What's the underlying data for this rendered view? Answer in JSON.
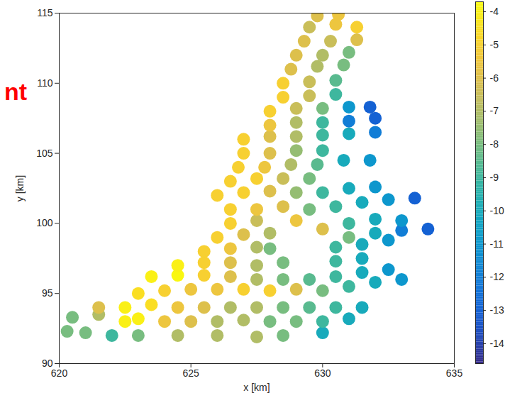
{
  "chart_data": {
    "type": "scatter",
    "x_label": "x [km]",
    "y_label": "y [km]",
    "xlim": [
      620,
      635
    ],
    "ylim": [
      90,
      115
    ],
    "xticks": [
      620,
      625,
      630,
      635
    ],
    "yticks": [
      90,
      95,
      100,
      105,
      110,
      115
    ],
    "colorbar": {
      "range": [
        -14.6,
        -3.7
      ],
      "ticks": [
        -14,
        -13,
        -12,
        -11,
        -10,
        -9,
        -8,
        -7,
        -6,
        -5,
        -4
      ]
    },
    "annotations": [
      {
        "text": "nt",
        "color": "#ff0000"
      }
    ],
    "points": [
      [
        620.3,
        92.3,
        -8
      ],
      [
        621,
        92.2,
        -8
      ],
      [
        622,
        92,
        -9
      ],
      [
        623,
        92,
        -8
      ],
      [
        624.5,
        92,
        -7
      ],
      [
        626,
        92,
        -7
      ],
      [
        627.5,
        91.9,
        -7
      ],
      [
        628.5,
        92,
        -8
      ],
      [
        630,
        92.2,
        -10
      ],
      [
        620.5,
        93.3,
        -8
      ],
      [
        621.5,
        93.5,
        -7
      ],
      [
        622.5,
        93,
        -4
      ],
      [
        623,
        93.2,
        -4
      ],
      [
        624,
        93,
        -5.5
      ],
      [
        625,
        93,
        -6
      ],
      [
        626,
        93,
        -7
      ],
      [
        627,
        93.1,
        -7
      ],
      [
        628,
        93,
        -8
      ],
      [
        629,
        93,
        -8
      ],
      [
        630,
        93,
        -9
      ],
      [
        631,
        93.2,
        -10
      ],
      [
        621.5,
        94,
        -6
      ],
      [
        622.5,
        94,
        -4
      ],
      [
        623.5,
        94.2,
        -4.5
      ],
      [
        624.5,
        94,
        -5.5
      ],
      [
        625.5,
        94,
        -6
      ],
      [
        626.5,
        94,
        -7
      ],
      [
        627.5,
        94,
        -7
      ],
      [
        628.5,
        94,
        -8
      ],
      [
        629.5,
        94,
        -8.5
      ],
      [
        630.5,
        94,
        -9
      ],
      [
        631.5,
        94,
        -10
      ],
      [
        623,
        95,
        -4.5
      ],
      [
        624,
        95.2,
        -5
      ],
      [
        625,
        95.3,
        -5.5
      ],
      [
        626,
        95.3,
        -5.5
      ],
      [
        627,
        95.3,
        -5
      ],
      [
        628,
        95.2,
        -5
      ],
      [
        629,
        95.3,
        -6
      ],
      [
        630,
        95.2,
        -8
      ],
      [
        631,
        95.5,
        -9
      ],
      [
        632,
        95.8,
        -10
      ],
      [
        633,
        96,
        -11
      ],
      [
        623.5,
        96.2,
        -4
      ],
      [
        624.5,
        96.3,
        -3.8
      ],
      [
        625.5,
        96.3,
        -5
      ],
      [
        626.5,
        96.2,
        -6
      ],
      [
        627.5,
        96,
        -7
      ],
      [
        628.5,
        96,
        -8
      ],
      [
        629.5,
        96,
        -8.5
      ],
      [
        630.5,
        96.2,
        -9
      ],
      [
        631.5,
        96.5,
        -10
      ],
      [
        632.5,
        96.7,
        -11
      ],
      [
        624.5,
        97,
        -4
      ],
      [
        625.5,
        97.2,
        -5
      ],
      [
        626.5,
        97.2,
        -6
      ],
      [
        627.5,
        97,
        -7
      ],
      [
        628.5,
        97.2,
        -8
      ],
      [
        630.5,
        97.3,
        -9
      ],
      [
        631.5,
        97.5,
        -10
      ],
      [
        625.5,
        98,
        -5
      ],
      [
        626.5,
        98.2,
        -5.5
      ],
      [
        627.5,
        98.3,
        -7
      ],
      [
        628,
        98.2,
        -8
      ],
      [
        630.5,
        98.3,
        -9
      ],
      [
        631.5,
        98.5,
        -10
      ],
      [
        632.5,
        98.8,
        -11
      ],
      [
        626,
        99,
        -5
      ],
      [
        627,
        99.2,
        -6
      ],
      [
        628,
        99.3,
        -7
      ],
      [
        631,
        99,
        -8
      ],
      [
        632,
        99.3,
        -10
      ],
      [
        633,
        99.5,
        -12
      ],
      [
        634,
        99.6,
        -13
      ],
      [
        626.5,
        100,
        -5
      ],
      [
        627.5,
        100.2,
        -6.5
      ],
      [
        629,
        100.2,
        -5.5
      ],
      [
        630,
        99.6,
        -6
      ],
      [
        631,
        100,
        -9
      ],
      [
        632,
        100.3,
        -10
      ],
      [
        633,
        100.2,
        -11
      ],
      [
        626.5,
        101,
        -5
      ],
      [
        627.5,
        101,
        -5.5
      ],
      [
        628.5,
        101.2,
        -6
      ],
      [
        629.5,
        101,
        -8
      ],
      [
        630.5,
        101.2,
        -9
      ],
      [
        631.5,
        101.5,
        -10
      ],
      [
        632.5,
        101.7,
        -11
      ],
      [
        633.5,
        101.8,
        -13
      ],
      [
        626,
        102,
        -5
      ],
      [
        627,
        102.2,
        -5
      ],
      [
        628,
        102.3,
        -6
      ],
      [
        629,
        102.2,
        -7.5
      ],
      [
        630,
        102.2,
        -9
      ],
      [
        631,
        102.5,
        -10
      ],
      [
        632,
        102.6,
        -11
      ],
      [
        626.5,
        103,
        -5
      ],
      [
        627.5,
        103.2,
        -5
      ],
      [
        628.5,
        103.2,
        -6.5
      ],
      [
        629.5,
        103.2,
        -8
      ],
      [
        626.8,
        104,
        -5
      ],
      [
        627.8,
        104,
        -5.5
      ],
      [
        628.8,
        104.2,
        -7
      ],
      [
        629.8,
        104.2,
        -8.5
      ],
      [
        630.8,
        104.5,
        -10
      ],
      [
        631.8,
        104.5,
        -11
      ],
      [
        627,
        105,
        -5
      ],
      [
        628,
        105,
        -6
      ],
      [
        629,
        105.2,
        -7.5
      ],
      [
        630,
        105.2,
        -9
      ],
      [
        627,
        106,
        -5
      ],
      [
        628,
        106.2,
        -6
      ],
      [
        629,
        106.2,
        -7
      ],
      [
        630,
        106.3,
        -9
      ],
      [
        631,
        106.4,
        -10
      ],
      [
        632,
        106.5,
        -12
      ],
      [
        628,
        107,
        -5.5
      ],
      [
        629,
        107.2,
        -7
      ],
      [
        630,
        107.2,
        -9
      ],
      [
        631,
        107.3,
        -12
      ],
      [
        632,
        107.5,
        -13
      ],
      [
        628,
        108,
        -5
      ],
      [
        629,
        108.2,
        -6.5
      ],
      [
        630,
        108.2,
        -8
      ],
      [
        631,
        108.3,
        -11
      ],
      [
        631.8,
        108.3,
        -13
      ],
      [
        628.5,
        109,
        -5
      ],
      [
        629.5,
        109.1,
        -6.5
      ],
      [
        630.5,
        109.2,
        -9
      ],
      [
        628.5,
        110,
        -5
      ],
      [
        629.5,
        110.1,
        -6.5
      ],
      [
        630.5,
        110.2,
        -8.5
      ],
      [
        628.8,
        111,
        -6
      ],
      [
        629.8,
        111.2,
        -7
      ],
      [
        630.8,
        111.3,
        -8
      ],
      [
        629,
        112,
        -6
      ],
      [
        630,
        112,
        -7
      ],
      [
        631,
        112.2,
        -8
      ],
      [
        629.3,
        113,
        -6
      ],
      [
        630.3,
        113,
        -6.5
      ],
      [
        631.3,
        113.1,
        -6
      ],
      [
        629.5,
        114,
        -6.5
      ],
      [
        630.5,
        114.2,
        -5.5
      ],
      [
        631.3,
        114,
        -5
      ],
      [
        629.8,
        114.8,
        -6
      ],
      [
        630.6,
        114.9,
        -5.5
      ]
    ]
  }
}
